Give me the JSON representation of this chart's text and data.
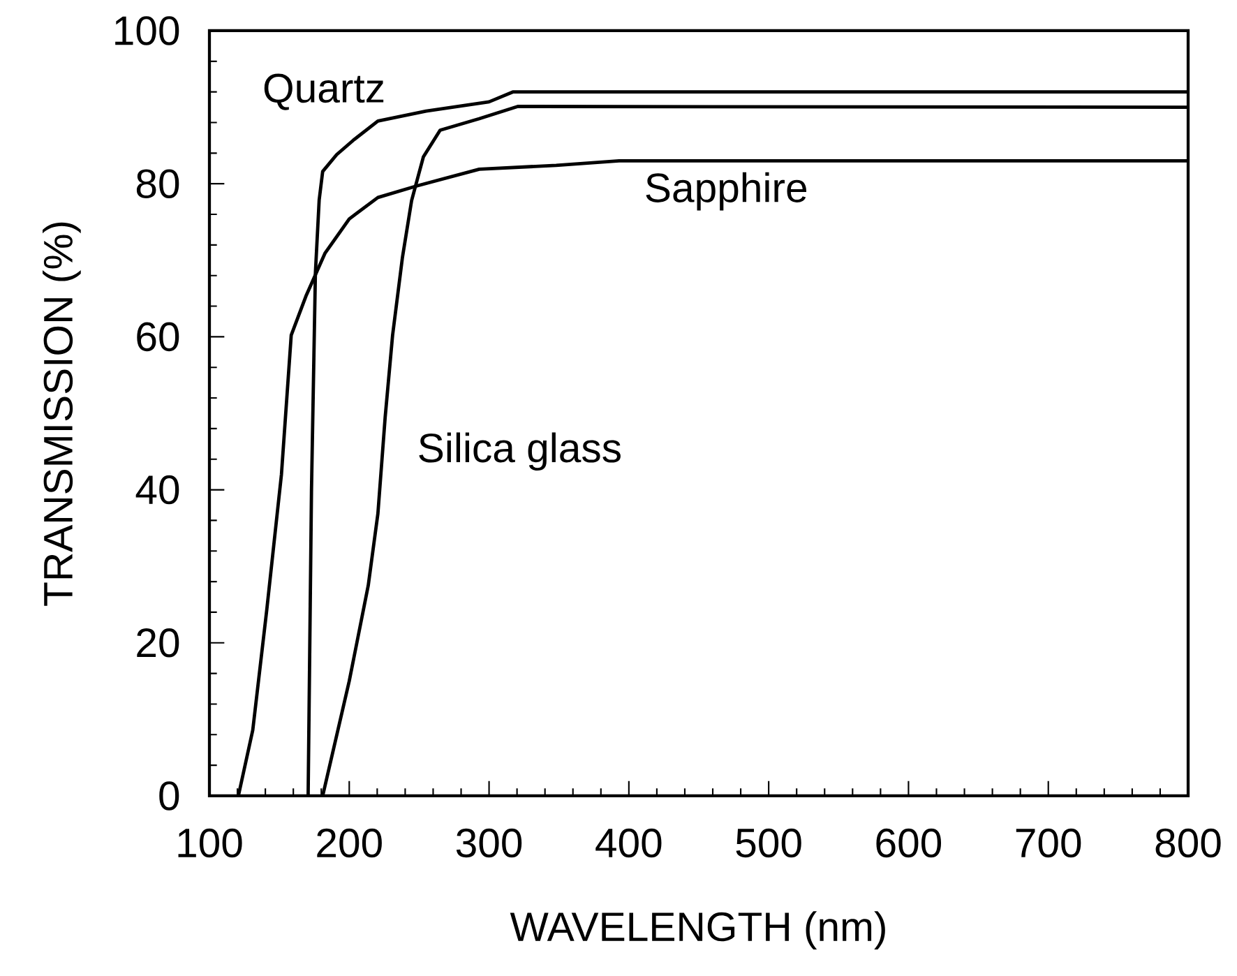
{
  "chart_data": {
    "type": "line",
    "xlabel": "WAVELENGTH (nm)",
    "ylabel": "TRANSMISSION (%)",
    "xlim": [
      100,
      800
    ],
    "ylim": [
      0,
      100
    ],
    "xticks": [
      100,
      200,
      300,
      400,
      500,
      600,
      700,
      800
    ],
    "yticks": [
      0,
      20,
      40,
      60,
      80,
      100
    ],
    "grid": false,
    "marker": "none",
    "line_style": "solid",
    "series": [
      {
        "color": "#000000",
        "x": [
          120.7,
          131,
          141,
          151.5,
          158.5,
          169,
          182.6,
          200,
          220.5,
          248,
          293,
          348,
          393,
          800
        ],
        "values": [
          0,
          8.6,
          24.3,
          42,
          60.2,
          65.3,
          70.9,
          75.4,
          78.2,
          79.7,
          81.9,
          82.4,
          83,
          83
        ]
      },
      {
        "color": "#000000",
        "x": [
          170.6,
          173,
          175.8,
          178.5,
          181,
          191,
          203,
          220.5,
          255,
          300,
          317,
          800
        ],
        "values": [
          0,
          40,
          68.4,
          77.9,
          81.6,
          83.8,
          85.7,
          88.2,
          89.5,
          90.7,
          92,
          92
        ]
      },
      {
        "color": "#000000",
        "x": [
          181,
          200,
          213.6,
          220.5,
          225.7,
          231,
          238,
          244.6,
          253,
          265,
          293,
          320.5,
          800
        ],
        "values": [
          0,
          15,
          27.5,
          36.9,
          49.5,
          60.2,
          70.3,
          77.8,
          83.5,
          87,
          88.5,
          90.1,
          90
        ]
      }
    ],
    "annotations": [
      "Quartz",
      "Sapphire",
      "Silica glass"
    ]
  }
}
